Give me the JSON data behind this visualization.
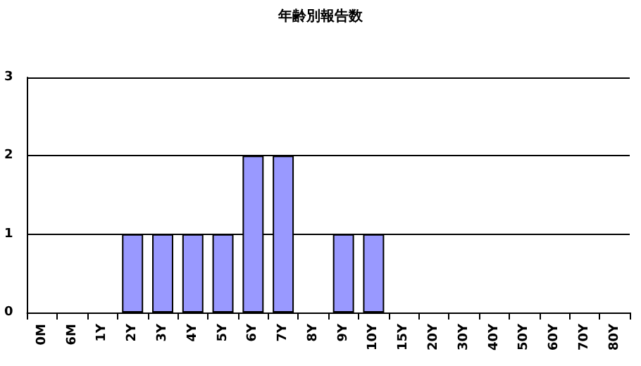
{
  "chart_data": {
    "type": "bar",
    "title": "年齢別報告数",
    "categories": [
      "0M",
      "6M",
      "1Y",
      "2Y",
      "3Y",
      "4Y",
      "5Y",
      "6Y",
      "7Y",
      "8Y",
      "9Y",
      "10Y",
      "15Y",
      "20Y",
      "30Y",
      "40Y",
      "50Y",
      "60Y",
      "70Y",
      "80Y"
    ],
    "values": [
      0,
      0,
      0,
      1,
      1,
      1,
      1,
      2,
      2,
      0,
      1,
      1,
      0,
      0,
      0,
      0,
      0,
      0,
      0,
      0
    ],
    "color": "#9999ff",
    "ylim": [
      0,
      3
    ],
    "yticks": [
      0,
      1,
      2,
      3
    ],
    "grid": "y"
  }
}
